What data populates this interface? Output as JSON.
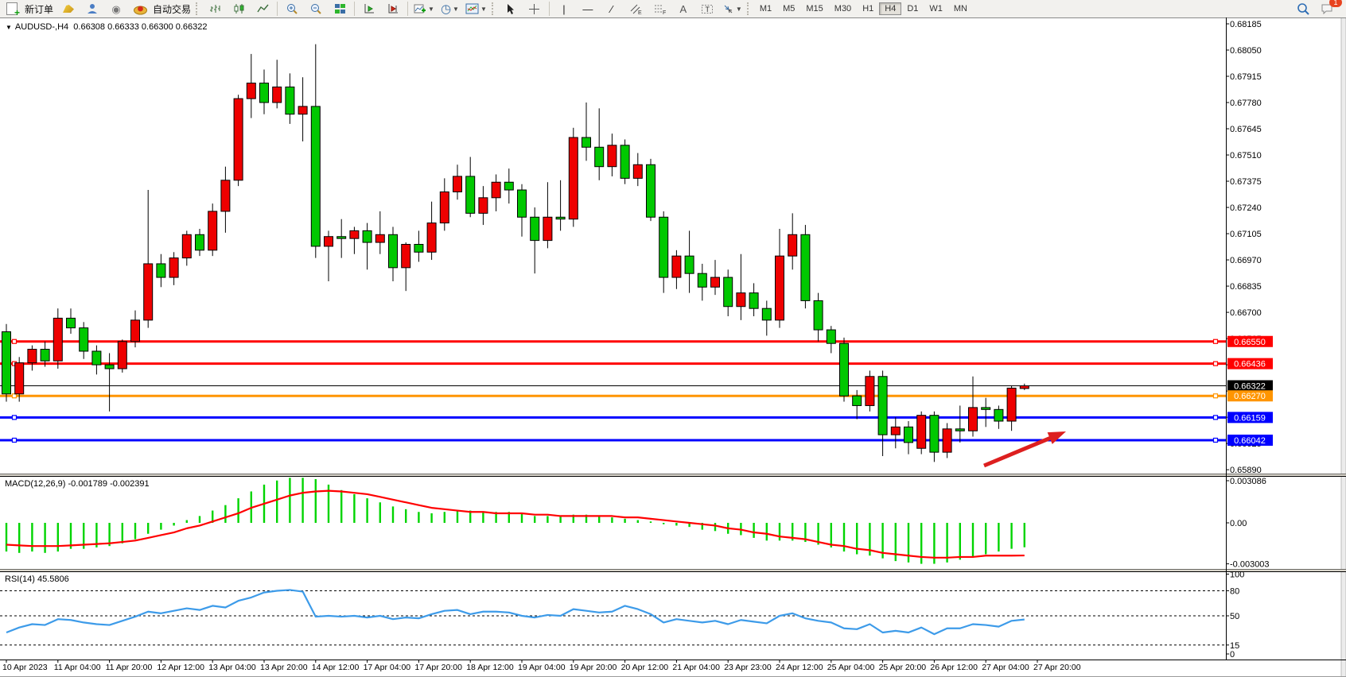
{
  "toolbar": {
    "new_order_label": "新订单",
    "autotrade_label": "自动交易",
    "badge": "1",
    "timeframes": [
      "M1",
      "M5",
      "M15",
      "M30",
      "H1",
      "H4",
      "D1",
      "W1",
      "MN"
    ],
    "active_timeframe": "H4"
  },
  "chart": {
    "symbol": "AUDUSD-,H4",
    "quote": "0.66308 0.66333 0.66300 0.66322",
    "dropdown_glyph": "▼"
  },
  "indicators": {
    "macd": {
      "name": "MACD(12,26,9)",
      "values": "-0.001789 -0.002391",
      "axis_labels": [
        0.003086,
        0.0,
        -0.003003
      ]
    },
    "rsi": {
      "name": "RSI(14)",
      "value": "45.5806",
      "axis_labels": [
        100,
        80,
        50,
        15,
        0
      ],
      "levels": [
        80,
        50,
        15
      ]
    }
  },
  "colors": {
    "bull": "#ee0000",
    "bear": "#00c800",
    "wick": "#000000",
    "macd_hist": "#00d400",
    "macd_signal": "#ff0000",
    "rsi_line": "#3d9be9",
    "arrow": "#dd1f1f",
    "res_line": "#ff0000",
    "pivot_line": "#ff9500",
    "sup_line": "#0000ff",
    "price_line": "#000000"
  },
  "chart_data": {
    "type": "candlestick",
    "symbol": "AUDUSD-",
    "period": "H4",
    "price_axis": {
      "top": 0.68185,
      "step": 0.00135,
      "count": 18,
      "bottom": 0.6589
    },
    "hlines": [
      {
        "price": 0.6655,
        "color": "#ff0000",
        "kind": "resistance"
      },
      {
        "price": 0.66436,
        "color": "#ff0000",
        "kind": "resistance"
      },
      {
        "price": 0.66322,
        "color": "#000000",
        "kind": "current-price"
      },
      {
        "price": 0.6627,
        "color": "#ff9500",
        "kind": "pivot"
      },
      {
        "price": 0.66159,
        "color": "#0000ff",
        "kind": "support"
      },
      {
        "price": 0.66042,
        "color": "#0000ff",
        "kind": "support"
      }
    ],
    "dates": [
      "10 Apr 2023",
      "11 Apr 04:00",
      "11 Apr 20:00",
      "12 Apr 12:00",
      "13 Apr 04:00",
      "13 Apr 20:00",
      "14 Apr 12:00",
      "17 Apr 04:00",
      "17 Apr 20:00",
      "18 Apr 12:00",
      "19 Apr 04:00",
      "19 Apr 20:00",
      "20 Apr 12:00",
      "21 Apr 04:00",
      "23 Apr 23:00",
      "24 Apr 12:00",
      "25 Apr 04:00",
      "25 Apr 20:00",
      "26 Apr 12:00",
      "27 Apr 04:00",
      "27 Apr 20:00"
    ],
    "ohlc": [
      [
        0.666,
        0.6664,
        0.6624,
        0.6628
      ],
      [
        0.6628,
        0.6647,
        0.6624,
        0.6644
      ],
      [
        0.6644,
        0.6653,
        0.664,
        0.6651
      ],
      [
        0.6651,
        0.6655,
        0.6642,
        0.6645
      ],
      [
        0.6645,
        0.6672,
        0.6641,
        0.6667
      ],
      [
        0.6667,
        0.6672,
        0.6659,
        0.6662
      ],
      [
        0.6662,
        0.6665,
        0.6646,
        0.665
      ],
      [
        0.665,
        0.6653,
        0.6638,
        0.6643
      ],
      [
        0.6643,
        0.6649,
        0.6619,
        0.6641
      ],
      [
        0.6641,
        0.6656,
        0.6639,
        0.6655
      ],
      [
        0.6655,
        0.6671,
        0.6652,
        0.6666
      ],
      [
        0.6666,
        0.6733,
        0.6662,
        0.6695
      ],
      [
        0.6695,
        0.67,
        0.6683,
        0.6688
      ],
      [
        0.6688,
        0.6701,
        0.6684,
        0.6698
      ],
      [
        0.6698,
        0.6712,
        0.6694,
        0.671
      ],
      [
        0.671,
        0.6713,
        0.6699,
        0.6702
      ],
      [
        0.6702,
        0.6726,
        0.6699,
        0.6722
      ],
      [
        0.6722,
        0.6745,
        0.6711,
        0.6738
      ],
      [
        0.6738,
        0.6782,
        0.6735,
        0.678
      ],
      [
        0.678,
        0.6803,
        0.677,
        0.6788
      ],
      [
        0.6788,
        0.6795,
        0.6772,
        0.6778
      ],
      [
        0.6778,
        0.68,
        0.6775,
        0.6786
      ],
      [
        0.6786,
        0.6793,
        0.6767,
        0.6772
      ],
      [
        0.6772,
        0.6791,
        0.6758,
        0.6776
      ],
      [
        0.6776,
        0.6808,
        0.6698,
        0.6704
      ],
      [
        0.6704,
        0.6712,
        0.6686,
        0.6709
      ],
      [
        0.6709,
        0.6718,
        0.6698,
        0.6708
      ],
      [
        0.6708,
        0.6714,
        0.67,
        0.6712
      ],
      [
        0.6712,
        0.6716,
        0.6692,
        0.6706
      ],
      [
        0.6706,
        0.6722,
        0.67,
        0.671
      ],
      [
        0.671,
        0.6714,
        0.6686,
        0.6693
      ],
      [
        0.6693,
        0.6706,
        0.6681,
        0.6705
      ],
      [
        0.6705,
        0.6712,
        0.6696,
        0.6701
      ],
      [
        0.6701,
        0.6727,
        0.6697,
        0.6716
      ],
      [
        0.6716,
        0.6739,
        0.6712,
        0.6732
      ],
      [
        0.6732,
        0.6746,
        0.6728,
        0.674
      ],
      [
        0.674,
        0.675,
        0.6719,
        0.6721
      ],
      [
        0.6721,
        0.6735,
        0.6715,
        0.6729
      ],
      [
        0.6729,
        0.6741,
        0.6722,
        0.6737
      ],
      [
        0.6737,
        0.6744,
        0.6726,
        0.6733
      ],
      [
        0.6733,
        0.6736,
        0.6709,
        0.6719
      ],
      [
        0.6719,
        0.6724,
        0.669,
        0.6707
      ],
      [
        0.6707,
        0.6737,
        0.6703,
        0.6719
      ],
      [
        0.6719,
        0.6738,
        0.6712,
        0.6718
      ],
      [
        0.6718,
        0.6765,
        0.6714,
        0.676
      ],
      [
        0.676,
        0.6778,
        0.6748,
        0.6755
      ],
      [
        0.6755,
        0.6775,
        0.6738,
        0.6745
      ],
      [
        0.6745,
        0.6762,
        0.674,
        0.6756
      ],
      [
        0.6756,
        0.6759,
        0.6736,
        0.6739
      ],
      [
        0.6739,
        0.6752,
        0.6735,
        0.6746
      ],
      [
        0.6746,
        0.6749,
        0.6717,
        0.6719
      ],
      [
        0.6719,
        0.6722,
        0.668,
        0.6688
      ],
      [
        0.6688,
        0.6702,
        0.6682,
        0.6699
      ],
      [
        0.6699,
        0.6712,
        0.668,
        0.669
      ],
      [
        0.669,
        0.6695,
        0.6676,
        0.6683
      ],
      [
        0.6683,
        0.6697,
        0.6679,
        0.6688
      ],
      [
        0.6688,
        0.6692,
        0.6668,
        0.6673
      ],
      [
        0.6673,
        0.67,
        0.6666,
        0.668
      ],
      [
        0.668,
        0.6685,
        0.6668,
        0.6672
      ],
      [
        0.6672,
        0.6676,
        0.6658,
        0.6666
      ],
      [
        0.6666,
        0.6713,
        0.6662,
        0.6699
      ],
      [
        0.6699,
        0.6721,
        0.6692,
        0.671
      ],
      [
        0.671,
        0.6715,
        0.6672,
        0.6676
      ],
      [
        0.6676,
        0.668,
        0.6655,
        0.6661
      ],
      [
        0.6661,
        0.6663,
        0.6649,
        0.6654
      ],
      [
        0.6654,
        0.6657,
        0.6624,
        0.6627
      ],
      [
        0.6627,
        0.663,
        0.6615,
        0.6622
      ],
      [
        0.6622,
        0.664,
        0.6619,
        0.6637
      ],
      [
        0.6637,
        0.664,
        0.6596,
        0.6607
      ],
      [
        0.6607,
        0.6616,
        0.66,
        0.6611
      ],
      [
        0.6611,
        0.6614,
        0.6597,
        0.6603
      ],
      [
        0.66,
        0.6619,
        0.6597,
        0.6617
      ],
      [
        0.6617,
        0.6619,
        0.6593,
        0.6598
      ],
      [
        0.6598,
        0.6613,
        0.6595,
        0.661
      ],
      [
        0.661,
        0.6622,
        0.6603,
        0.6609
      ],
      [
        0.6609,
        0.6637,
        0.6606,
        0.6621
      ],
      [
        0.6621,
        0.6626,
        0.6611,
        0.662
      ],
      [
        0.662,
        0.6622,
        0.661,
        0.6614
      ],
      [
        0.6614,
        0.6632,
        0.6609,
        0.6631
      ],
      [
        0.66308,
        0.66333,
        0.663,
        0.66322
      ]
    ],
    "macd_hist": [
      -0.0021,
      -0.0022,
      -0.0021,
      -0.0022,
      -0.0021,
      -0.0019,
      -0.0019,
      -0.0018,
      -0.0017,
      -0.0015,
      -0.0012,
      -0.0008,
      -0.0005,
      -0.0002,
      0.0002,
      0.0005,
      0.0009,
      0.0013,
      0.0018,
      0.0023,
      0.0028,
      0.0031,
      0.0033,
      0.0033,
      0.0032,
      0.0028,
      0.0024,
      0.0021,
      0.0018,
      0.0015,
      0.0012,
      0.001,
      0.0008,
      0.0007,
      0.0008,
      0.0009,
      0.0009,
      0.0008,
      0.0008,
      0.0008,
      0.0007,
      0.0005,
      0.0005,
      0.0005,
      0.0006,
      0.0006,
      0.0005,
      0.0004,
      0.0003,
      0.0002,
      0.0001,
      -0.0001,
      -0.0002,
      -0.0003,
      -0.0005,
      -0.0006,
      -0.0008,
      -0.0009,
      -0.0011,
      -0.0013,
      -0.0013,
      -0.0013,
      -0.0014,
      -0.0016,
      -0.0018,
      -0.0021,
      -0.0023,
      -0.0024,
      -0.0026,
      -0.0028,
      -0.0029,
      -0.003,
      -0.003,
      -0.0029,
      -0.0027,
      -0.0025,
      -0.0023,
      -0.0021,
      -0.0019,
      -0.001789
    ],
    "macd_signal": [
      -0.0016,
      -0.00165,
      -0.0017,
      -0.0017,
      -0.0017,
      -0.00165,
      -0.0016,
      -0.00155,
      -0.0015,
      -0.0014,
      -0.0013,
      -0.0011,
      -0.0009,
      -0.0007,
      -0.0004,
      -0.0002,
      0.0001,
      0.0004,
      0.0007,
      0.0011,
      0.0014,
      0.0017,
      0.002,
      0.0022,
      0.0023,
      0.00235,
      0.0023,
      0.0022,
      0.0021,
      0.0019,
      0.0017,
      0.0015,
      0.0013,
      0.0011,
      0.001,
      0.0009,
      0.0008,
      0.0008,
      0.0007,
      0.0007,
      0.0007,
      0.0006,
      0.0006,
      0.0005,
      0.0005,
      0.0005,
      0.0005,
      0.0005,
      0.0004,
      0.0004,
      0.0003,
      0.0002,
      0.0001,
      0.0,
      -0.0001,
      -0.0002,
      -0.0004,
      -0.0005,
      -0.0007,
      -0.0008,
      -0.001,
      -0.0011,
      -0.0012,
      -0.0014,
      -0.0016,
      -0.0017,
      -0.0019,
      -0.002,
      -0.0022,
      -0.0023,
      -0.0024,
      -0.0025,
      -0.00255,
      -0.00255,
      -0.0025,
      -0.0025,
      -0.0024,
      -0.0024,
      -0.0024,
      -0.002391
    ],
    "rsi_series": [
      30,
      36,
      40,
      39,
      46,
      45,
      42,
      40,
      39,
      44,
      49,
      55,
      53,
      56,
      59,
      57,
      62,
      60,
      68,
      72,
      78,
      80,
      81,
      79,
      49,
      50,
      49,
      50,
      48,
      50,
      46,
      48,
      47,
      52,
      56,
      57,
      52,
      55,
      55,
      54,
      50,
      48,
      51,
      50,
      58,
      56,
      54,
      55,
      62,
      58,
      52,
      42,
      46,
      44,
      42,
      44,
      40,
      45,
      43,
      41,
      50,
      53,
      47,
      44,
      42,
      35,
      34,
      40,
      30,
      32,
      30,
      36,
      28,
      35,
      35,
      40,
      39,
      37,
      44,
      45.58
    ],
    "annotation_arrow": {
      "from": [
        1237,
        564
      ],
      "to": [
        1340,
        521
      ]
    }
  }
}
